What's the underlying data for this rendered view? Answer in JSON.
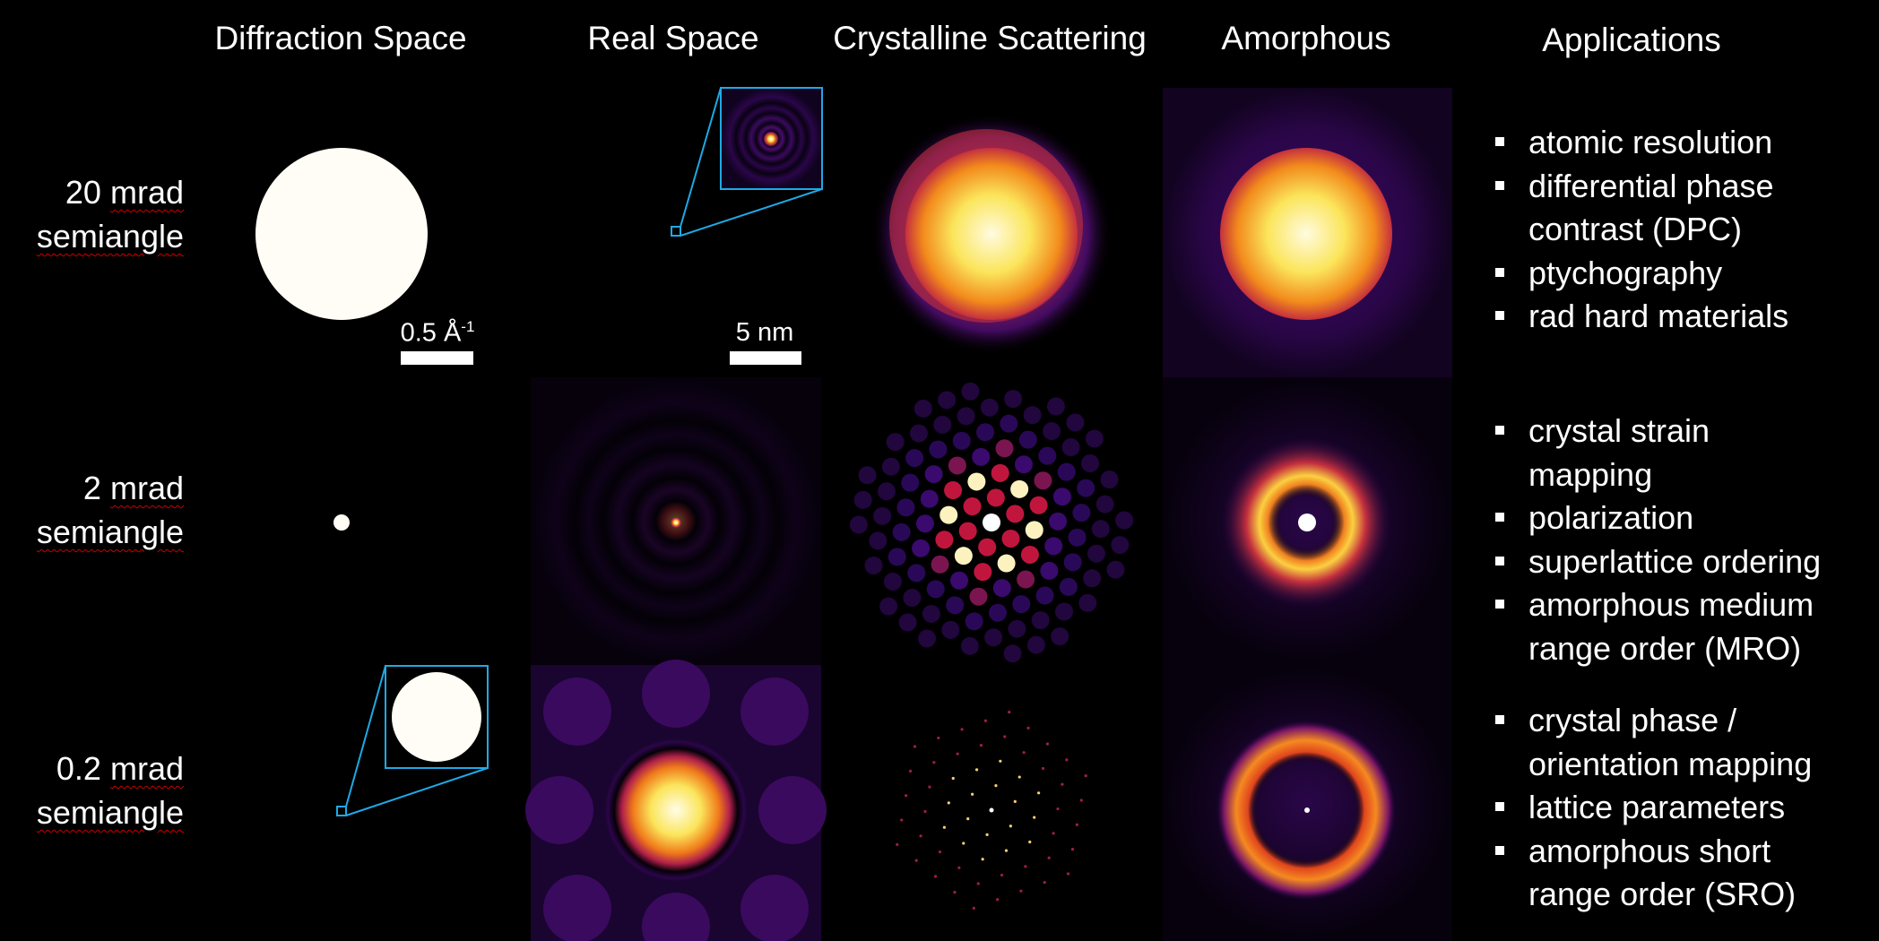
{
  "columns": [
    "Diffraction Space",
    "Real Space",
    "Crystalline Scattering",
    "Amorphous",
    "Applications"
  ],
  "rows": [
    {
      "value": "20",
      "unit": "mrad",
      "label": "semiangle",
      "applications": [
        [
          "atomic resolution"
        ],
        [
          "differential phase",
          "contrast (DPC)"
        ],
        [
          "ptychography"
        ],
        [
          "rad hard materials"
        ]
      ]
    },
    {
      "value": "2",
      "unit": "mrad",
      "label": "semiangle",
      "applications": [
        [
          "crystal strain",
          "mapping"
        ],
        [
          "polarization"
        ],
        [
          "superlattice ordering"
        ],
        [
          "amorphous medium",
          "range order (MRO)"
        ]
      ]
    },
    {
      "value": "0.2",
      "unit": "mrad",
      "label": "semiangle",
      "applications": [
        [
          "crystal phase /",
          "orientation mapping"
        ],
        [
          "lattice parameters"
        ],
        [
          "amorphous short",
          "range order (SRO)"
        ]
      ]
    }
  ],
  "scale_bars": {
    "diffraction": "0.5 Å",
    "diffraction_exp": "-1",
    "real": "5 nm"
  },
  "colors": {
    "background": "#000000",
    "inset_box": "#1fa9e6",
    "inferno_dark": "#1a0638",
    "inferno_purple": "#4a0c6b",
    "inferno_red": "#c5303e",
    "inferno_yellow": "#fbe55b"
  }
}
